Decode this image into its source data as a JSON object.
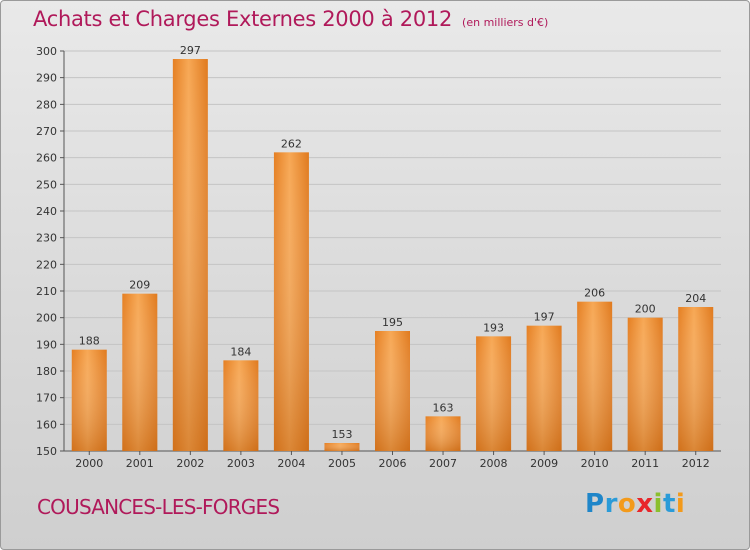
{
  "title": "Achats et Charges Externes 2000 à 2012",
  "subtitle": "(en milliers d'€)",
  "commune": "COUSANCES-LES-FORGES",
  "brand": "Proxiti",
  "colors": {
    "bar": "#ec8c2d",
    "bar_light": "#f6a350",
    "bar_dark": "#c86a16",
    "text_accent": "#b0195a"
  },
  "chart_data": {
    "type": "bar",
    "title": "Achats et Charges Externes 2000 à 2012",
    "subtitle": "(en milliers d'€)",
    "categories": [
      "2000",
      "2001",
      "2002",
      "2003",
      "2004",
      "2005",
      "2006",
      "2007",
      "2008",
      "2009",
      "2010",
      "2011",
      "2012"
    ],
    "values": [
      188,
      209,
      297,
      184,
      262,
      153,
      195,
      163,
      193,
      197,
      206,
      200,
      204
    ],
    "ylim": [
      150,
      300
    ],
    "yticks": [
      150,
      160,
      170,
      180,
      190,
      200,
      210,
      220,
      230,
      240,
      250,
      260,
      270,
      280,
      290,
      300
    ],
    "grid": true,
    "xlabel": "",
    "ylabel": ""
  }
}
